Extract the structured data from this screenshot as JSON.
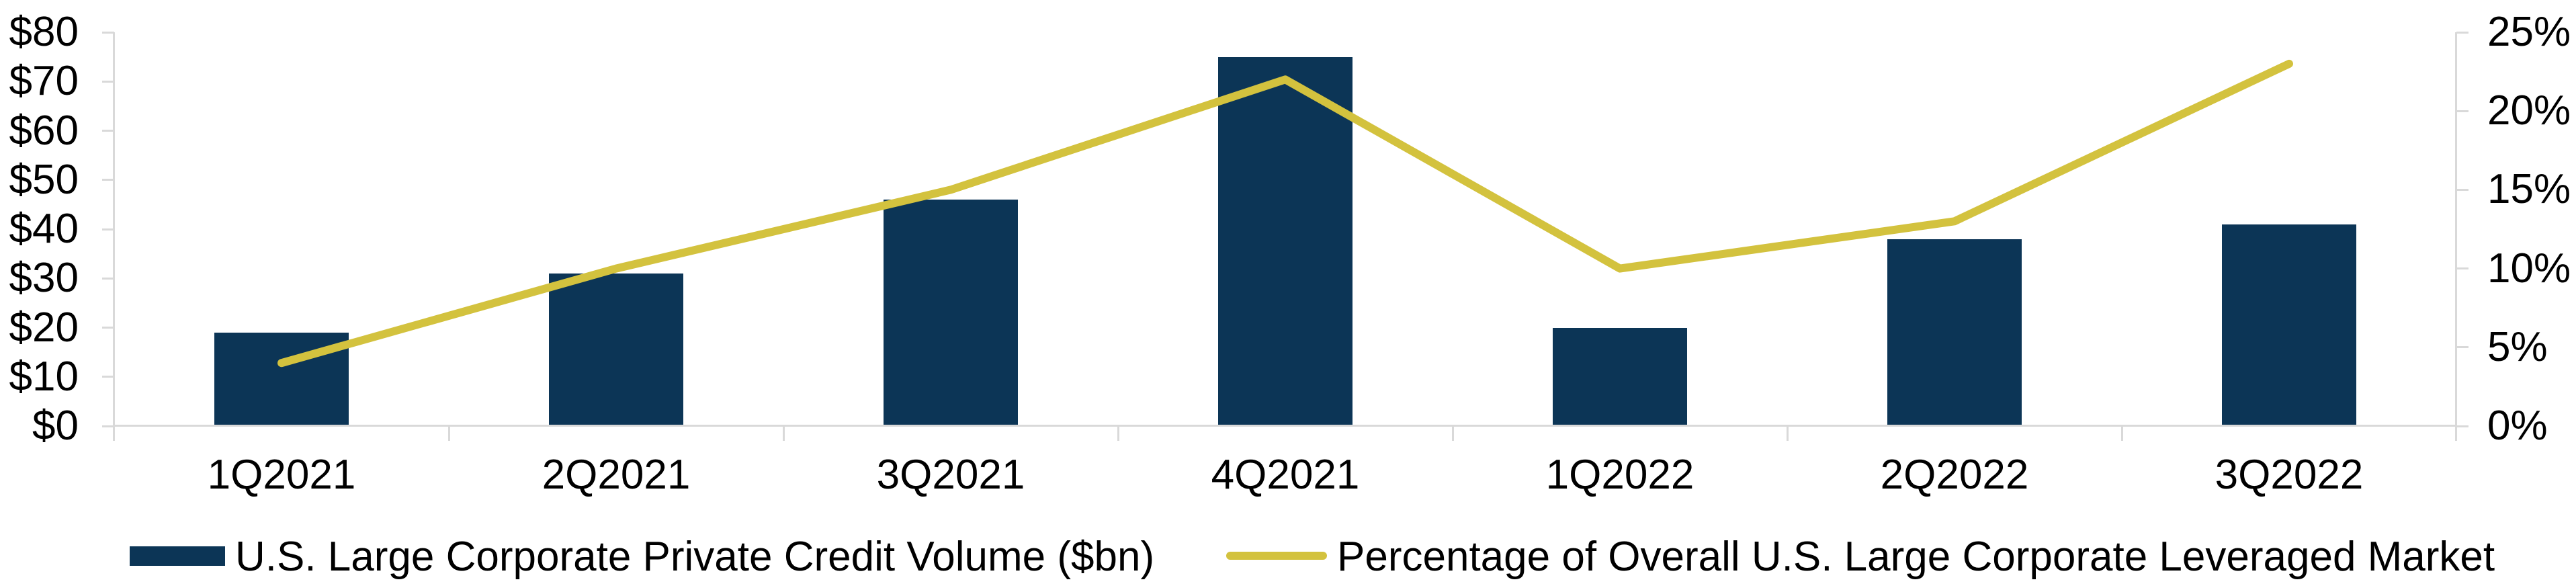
{
  "chart_data": {
    "type": "combo-bar-line",
    "categories": [
      "1Q2021",
      "2Q2021",
      "3Q2021",
      "4Q2021",
      "1Q2022",
      "2Q2022",
      "3Q2022"
    ],
    "series": [
      {
        "name": "U.S. Large Corporate Private Credit Volume ($bn)",
        "type": "bar",
        "axis": "left",
        "values": [
          19,
          31,
          46,
          75,
          20,
          38,
          41
        ],
        "color": "#0C3556"
      },
      {
        "name": "Percentage of Overall U.S. Large Corporate Leveraged Market",
        "type": "line",
        "axis": "right",
        "values": [
          4,
          10,
          15,
          22,
          10,
          13,
          23
        ],
        "color": "#D3C23E"
      }
    ],
    "left_axis": {
      "min": 0,
      "max": 80,
      "step": 10,
      "tick_labels_top_down": [
        "$80",
        "$70",
        "$60",
        "$50",
        "$40",
        "$30",
        "$20",
        "$10",
        "$0"
      ],
      "tick_values_top_down": [
        80,
        70,
        60,
        50,
        40,
        30,
        20,
        10,
        0
      ]
    },
    "right_axis": {
      "min": 0,
      "max": 25,
      "step": 5,
      "tick_labels_top_down": [
        "25%",
        "20%",
        "15%",
        "10%",
        "5%",
        "0%"
      ],
      "tick_values_top_down": [
        25,
        20,
        15,
        10,
        5,
        0
      ]
    },
    "title": "",
    "grid": false,
    "legend_position": "bottom"
  },
  "colors": {
    "bar": "#0C3556",
    "line": "#D3C23E",
    "axis": "#D9D9D9",
    "text": "#000000",
    "background": "#FFFFFF"
  }
}
